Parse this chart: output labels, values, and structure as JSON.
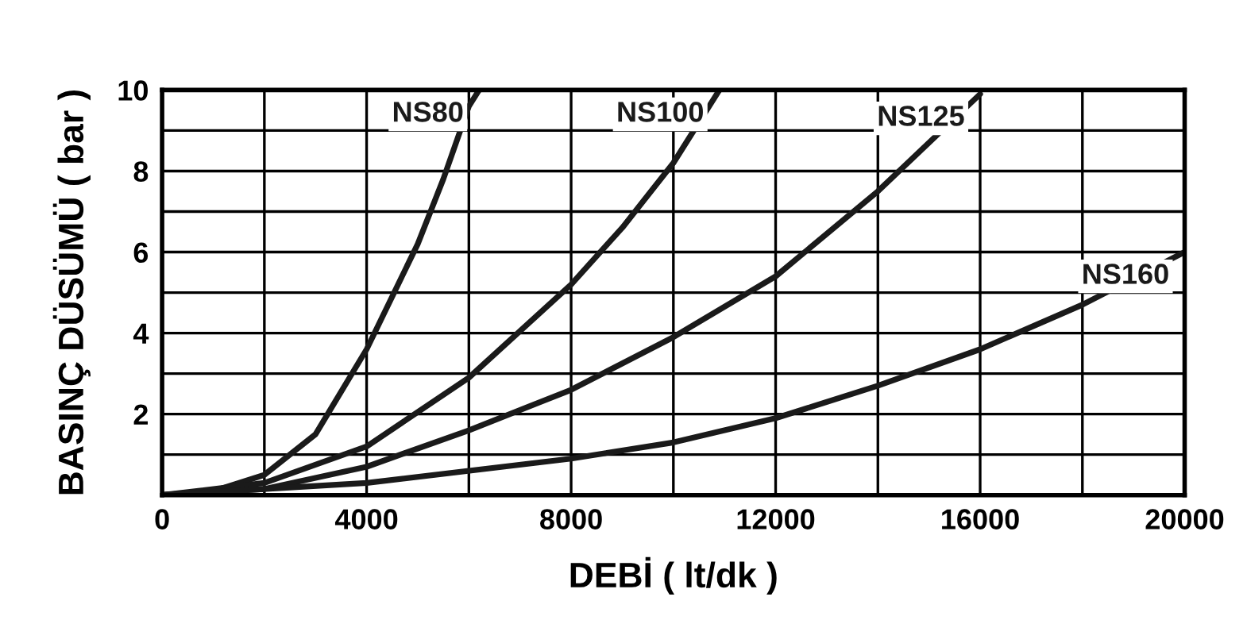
{
  "chart_data": {
    "type": "line",
    "xlabel": "DEBİ ( lt/dk )",
    "ylabel": "BASINÇ DÜSÜMÜ ( bar )",
    "xlim": [
      0,
      20000
    ],
    "ylim": [
      0,
      10
    ],
    "xticks": [
      0,
      {
        "value": 2000,
        "label": null
      },
      4000,
      {
        "value": 6000,
        "label": null
      },
      8000,
      {
        "value": 10000,
        "label": null
      },
      12000,
      {
        "value": 14000,
        "label": null
      },
      16000,
      {
        "value": 18000,
        "label": null
      },
      20000
    ],
    "yticks": [
      {
        "value": 1,
        "label": null
      },
      2,
      {
        "value": 3,
        "label": null
      },
      4,
      {
        "value": 5,
        "label": null
      },
      6,
      {
        "value": 7,
        "label": null
      },
      8,
      {
        "value": 9,
        "label": null
      },
      10
    ],
    "grid": true,
    "marker": "none",
    "line_style": "solid",
    "series": [
      {
        "name": "NS80",
        "color": "#1a1a1a",
        "x": [
          0,
          1000,
          2000,
          3000,
          4000,
          5000,
          5500,
          6000,
          6200
        ],
        "values": [
          0,
          0.1,
          0.5,
          1.5,
          3.6,
          6.2,
          7.8,
          9.6,
          10
        ]
      },
      {
        "name": "NS100",
        "color": "#1a1a1a",
        "x": [
          0,
          2000,
          4000,
          6000,
          8000,
          9000,
          10000,
          10900
        ],
        "values": [
          0,
          0.3,
          1.2,
          2.9,
          5.2,
          6.6,
          8.2,
          10
        ]
      },
      {
        "name": "NS125",
        "color": "#1a1a1a",
        "x": [
          0,
          2000,
          4000,
          6000,
          8000,
          10000,
          12000,
          14000,
          16000
        ],
        "values": [
          0,
          0.15,
          0.7,
          1.6,
          2.6,
          3.9,
          5.4,
          7.5,
          9.9
        ]
      },
      {
        "name": "NS160",
        "color": "#1a1a1a",
        "x": [
          0,
          4000,
          8000,
          10000,
          12000,
          14000,
          16000,
          18000,
          20000
        ],
        "values": [
          0,
          0.3,
          0.9,
          1.3,
          1.9,
          2.7,
          3.6,
          4.7,
          6.0
        ]
      }
    ]
  }
}
